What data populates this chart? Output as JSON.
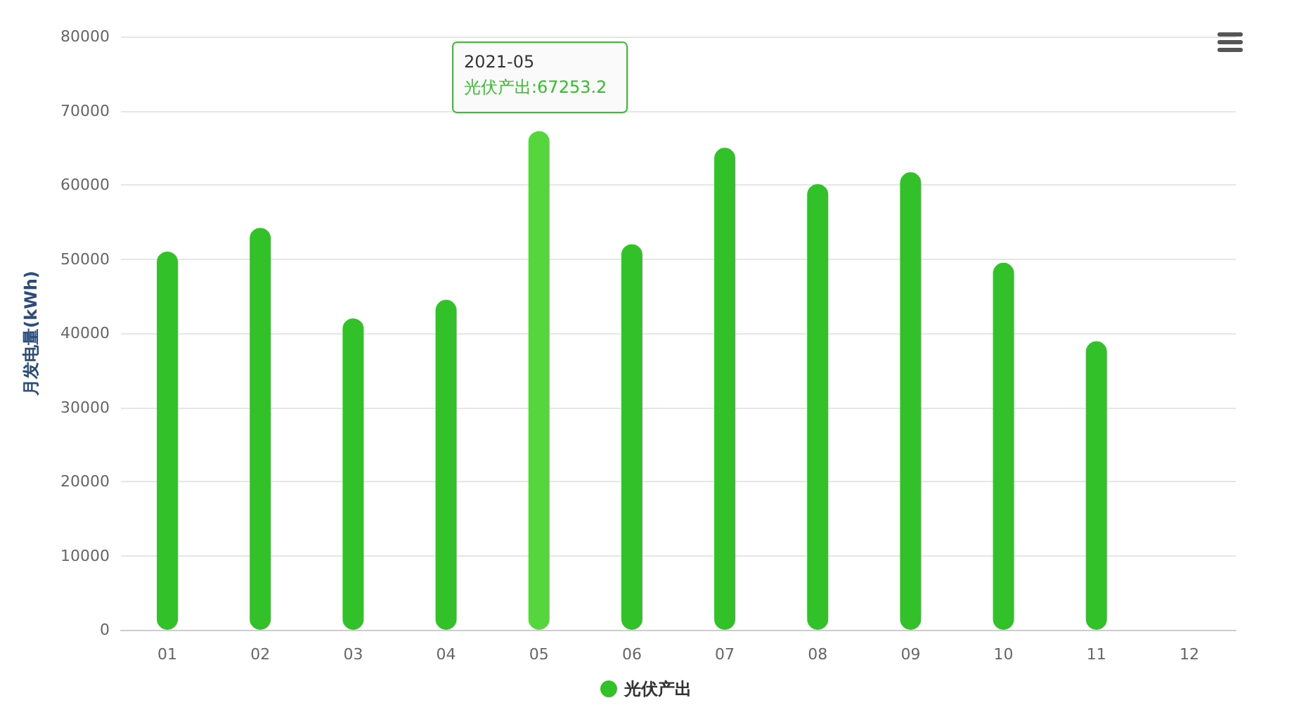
{
  "chart_data": {
    "type": "bar",
    "ylabel": "月发电量(kWh)",
    "categories": [
      "01",
      "02",
      "03",
      "04",
      "05",
      "06",
      "07",
      "08",
      "09",
      "10",
      "11",
      "12"
    ],
    "series": [
      {
        "name": "光伏产出",
        "color": "#33c12a",
        "colors": [
          "#33c12a",
          "#33c12a",
          "#33c12a",
          "#33c12a",
          "#55d63d",
          "#33c12a",
          "#33c12a",
          "#33c12a",
          "#33c12a",
          "#33c12a",
          "#33c12a",
          "#33c12a"
        ],
        "values": [
          51000,
          54200,
          42000,
          44500,
          67253.2,
          52000,
          65000,
          60100,
          61700,
          49500,
          38900,
          null
        ]
      }
    ],
    "ylim": [
      0,
      80000
    ],
    "yticks": [
      0,
      10000,
      20000,
      30000,
      40000,
      50000,
      60000,
      70000,
      80000
    ],
    "grid": "y",
    "legend": "bottom",
    "annotations": [
      "2021-05",
      "光伏产出:67253.2"
    ]
  }
}
